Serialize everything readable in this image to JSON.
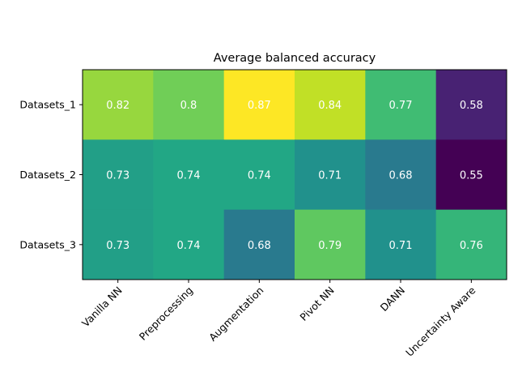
{
  "chart_data": {
    "type": "heatmap",
    "title": "Average balanced accuracy",
    "xlabel": "",
    "ylabel": "",
    "x_categories": [
      "Vanilla NN",
      "Preprocessing",
      "Augmentation",
      "Pivot NN",
      "DANN",
      "Uncertainty Aware"
    ],
    "y_categories": [
      "Datasets_1",
      "Datasets_2",
      "Datasets_3"
    ],
    "values": [
      [
        0.82,
        0.8,
        0.87,
        0.84,
        0.77,
        0.58
      ],
      [
        0.73,
        0.74,
        0.74,
        0.71,
        0.68,
        0.55
      ],
      [
        0.73,
        0.74,
        0.68,
        0.79,
        0.71,
        0.76
      ]
    ],
    "colormap": "viridis",
    "vmin": 0.55,
    "vmax": 0.87,
    "annotations": true,
    "grid": false,
    "legend": "none"
  }
}
